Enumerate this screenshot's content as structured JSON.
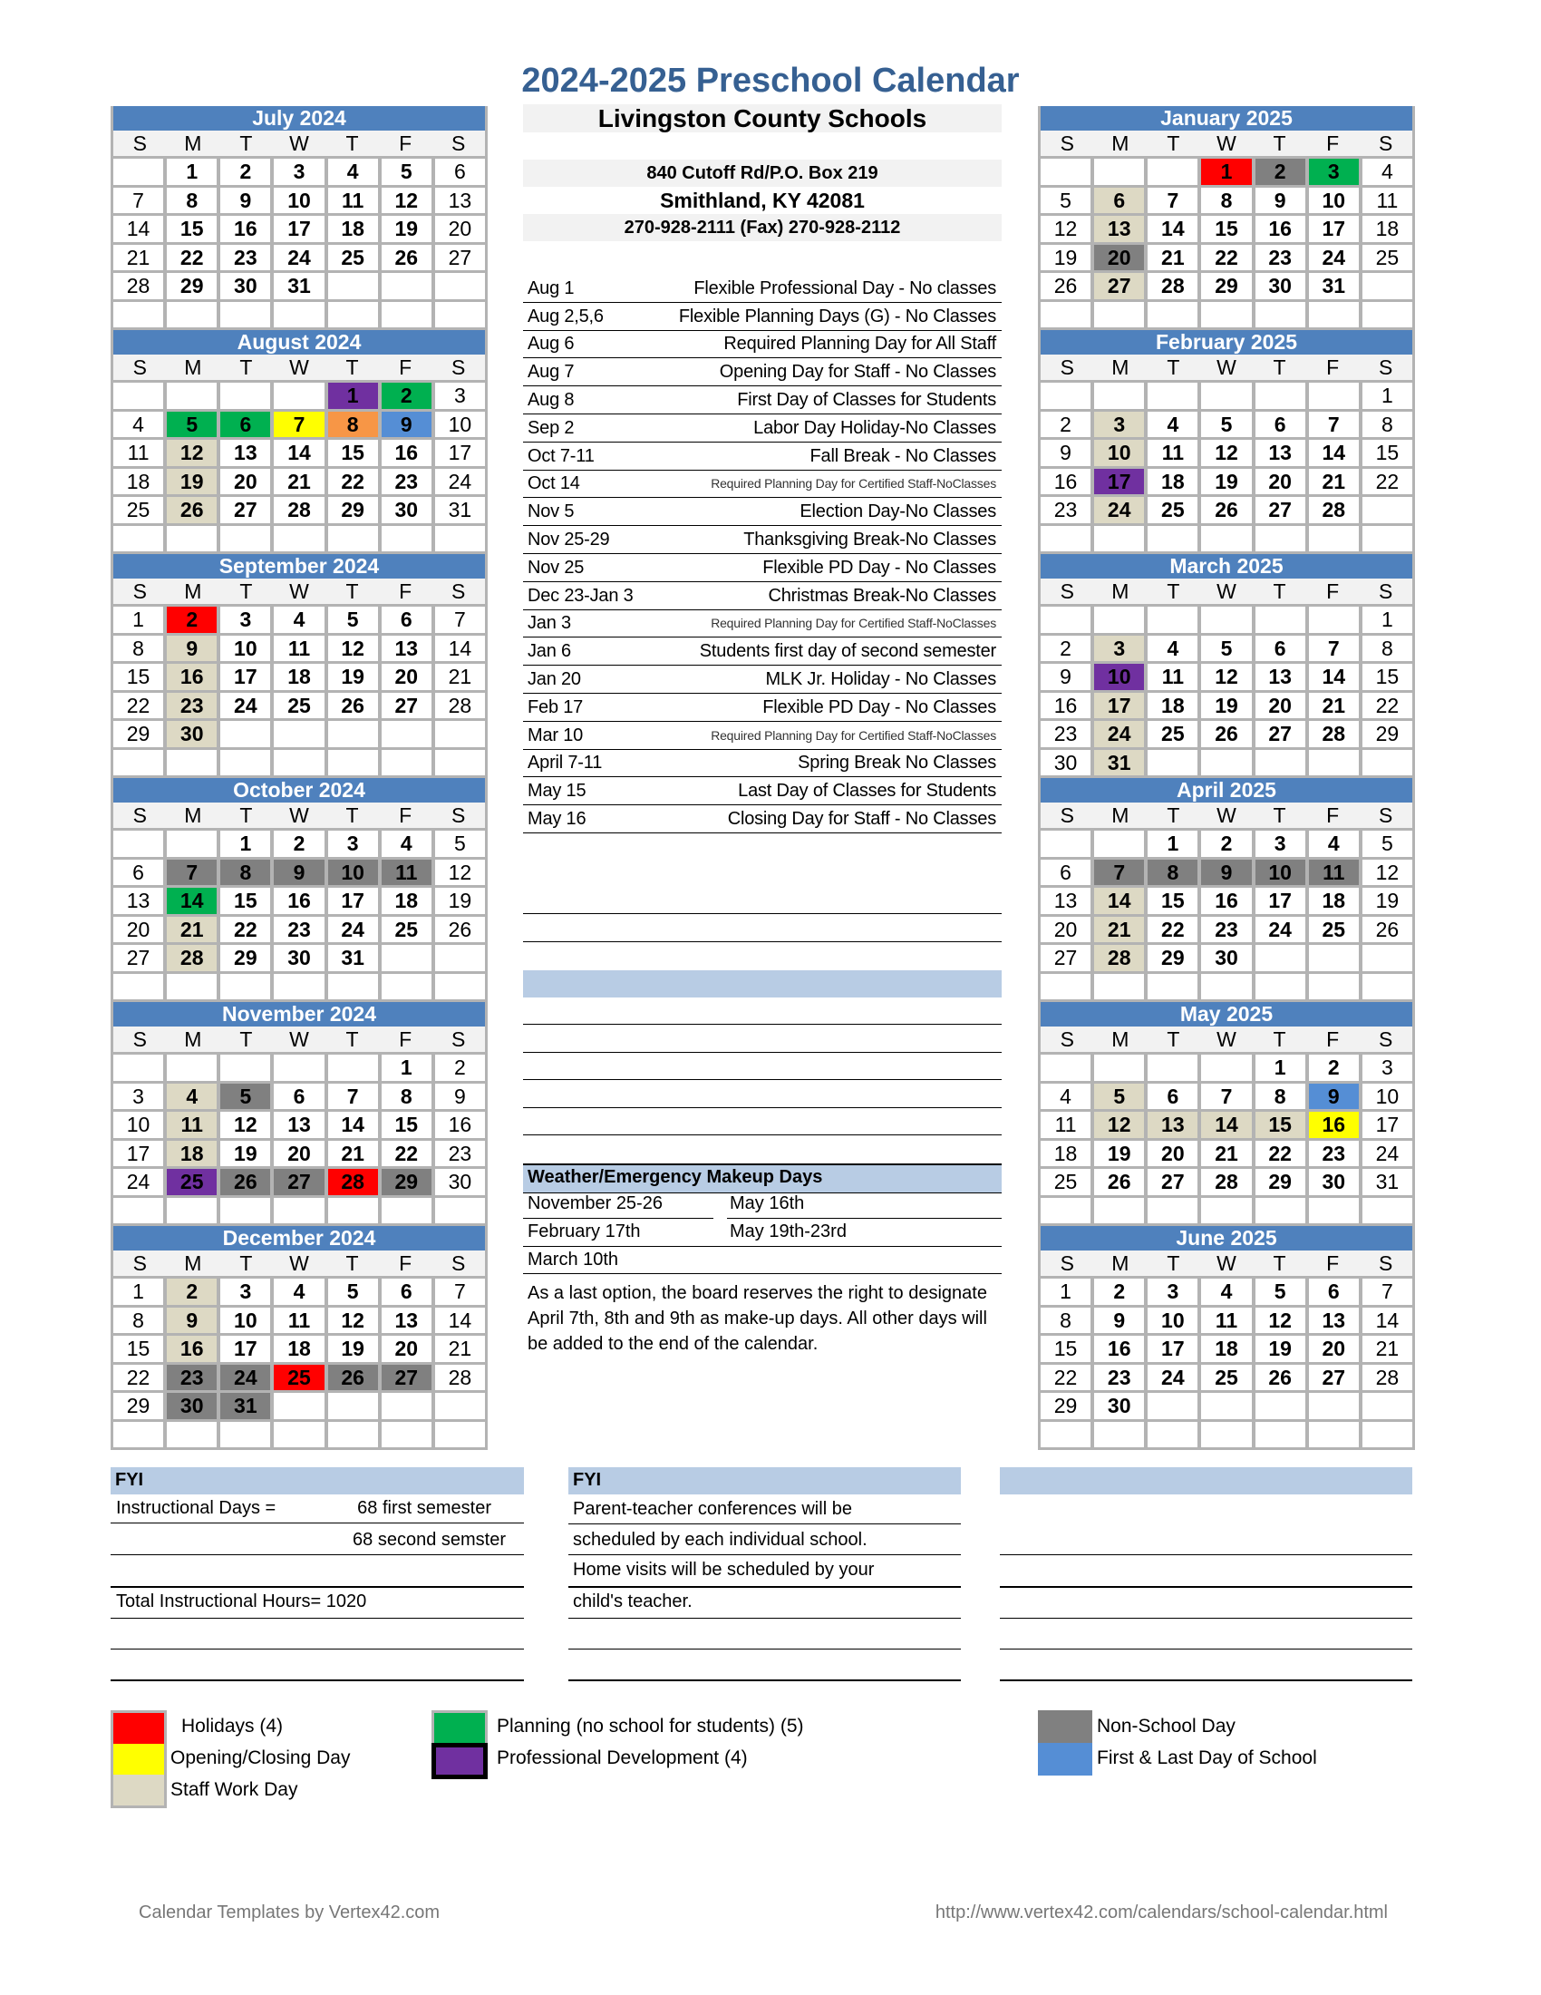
{
  "title": "2024-2025 Preschool Calendar",
  "school": {
    "name": "Livingston County Schools",
    "address": "840 Cutoff Rd/P.O. Box 219",
    "city": "Smithland, KY 42081",
    "phone": "270-928-2111  (Fax) 270-928-2112"
  },
  "weekday_headers": [
    "S",
    "M",
    "T",
    "W",
    "T",
    "F",
    "S"
  ],
  "colors": {
    "header": "#4f81bd",
    "tan": "#ddd9c4",
    "gray": "#808080",
    "red": "#ff0000",
    "green": "#00b050",
    "yellow": "#ffff00",
    "orange": "#f79646",
    "blue": "#558ed5",
    "purple": "#7030a0"
  },
  "months_left": [
    {
      "name": "July 2024",
      "start": 1,
      "days": 31,
      "marks": {}
    },
    {
      "name": "August 2024",
      "start": 4,
      "days": 31,
      "marks": {
        "1": "purple",
        "2": "green",
        "5": "green",
        "6": "green",
        "7": "yellow",
        "8": "orange",
        "9": "blue",
        "12": "tan",
        "19": "tan",
        "26": "tan"
      }
    },
    {
      "name": "September 2024",
      "start": 0,
      "days": 30,
      "marks": {
        "2": "red",
        "9": "tan",
        "16": "tan",
        "23": "tan",
        "30": "tan"
      }
    },
    {
      "name": "October 2024",
      "start": 2,
      "days": 31,
      "marks": {
        "7": "gray",
        "8": "gray",
        "9": "gray",
        "10": "gray",
        "11": "gray",
        "14": "green",
        "21": "tan",
        "28": "tan"
      }
    },
    {
      "name": "November 2024",
      "start": 5,
      "days": 30,
      "marks": {
        "4": "tan",
        "5": "gray",
        "11": "tan",
        "18": "tan",
        "25": "purple",
        "26": "gray",
        "27": "gray",
        "28": "red",
        "29": "gray"
      }
    },
    {
      "name": "December 2024",
      "start": 0,
      "days": 31,
      "marks": {
        "2": "tan",
        "9": "tan",
        "16": "tan",
        "23": "gray",
        "24": "gray",
        "25": "red",
        "26": "gray",
        "27": "gray",
        "30": "gray",
        "31": "gray"
      }
    }
  ],
  "months_right": [
    {
      "name": "January 2025",
      "start": 3,
      "days": 31,
      "marks": {
        "1": "red",
        "2": "gray",
        "3": "green",
        "6": "tan",
        "13": "tan",
        "20": "gray",
        "27": "tan"
      }
    },
    {
      "name": "February 2025",
      "start": 6,
      "days": 28,
      "marks": {
        "3": "tan",
        "10": "tan",
        "17": "purple",
        "24": "tan"
      }
    },
    {
      "name": "March 2025",
      "start": 6,
      "days": 31,
      "marks": {
        "3": "tan",
        "10": "purple",
        "17": "tan",
        "24": "tan",
        "31": "tan"
      }
    },
    {
      "name": "April 2025",
      "start": 2,
      "days": 30,
      "marks": {
        "7": "gray",
        "8": "gray",
        "9": "gray",
        "10": "gray",
        "11": "gray",
        "14": "tan",
        "21": "tan",
        "28": "tan"
      }
    },
    {
      "name": "May 2025",
      "start": 4,
      "days": 31,
      "marks": {
        "5": "tan",
        "9": "blue",
        "12": "tan",
        "13": "tan",
        "14": "tan",
        "15": "tan",
        "16": "yellow"
      }
    },
    {
      "name": "June 2025",
      "start": 0,
      "days": 30,
      "marks": {}
    }
  ],
  "events": [
    {
      "date": "Aug 1",
      "text": "Flexible Professional Day - No classes"
    },
    {
      "date": "Aug 2,5,6",
      "text": "Flexible Planning Days (G) - No Classes"
    },
    {
      "date": "Aug 6",
      "text": "Required Planning Day for All Staff"
    },
    {
      "date": "Aug 7",
      "text": "Opening Day for Staff - No Classes"
    },
    {
      "date": "Aug 8",
      "text": "First Day of Classes for Students"
    },
    {
      "date": "Sep 2",
      "text": "Labor Day Holiday-No Classes"
    },
    {
      "date": "Oct 7-11",
      "text": "Fall Break - No Classes"
    },
    {
      "date": "Oct 14",
      "text": "Required Planning Day for Certified Staff-NoClasses",
      "small": true
    },
    {
      "date": "Nov 5",
      "text": "Election Day-No Classes"
    },
    {
      "date": "Nov 25-29",
      "text": "Thanksgiving Break-No Classes"
    },
    {
      "date": "Nov 25",
      "text": "Flexible PD Day - No Classes"
    },
    {
      "date": "Dec 23-Jan 3",
      "text": "Christmas Break-No Classes"
    },
    {
      "date": "Jan 3",
      "text": "Required Planning Day for Certified Staff-NoClasses",
      "small": true
    },
    {
      "date": "Jan 6",
      "text": "Students first day of second semester"
    },
    {
      "date": "Jan 20",
      "text": "MLK Jr. Holiday - No Classes"
    },
    {
      "date": "Feb 17",
      "text": "Flexible PD Day - No Classes"
    },
    {
      "date": "Mar 10",
      "text": "Required Planning Day for Certified Staff-NoClasses",
      "small": true
    },
    {
      "date": "April 7-11",
      "text": "Spring Break No Classes"
    },
    {
      "date": "May 15",
      "text": "Last Day of Classes for Students"
    },
    {
      "date": "May 16",
      "text": "Closing Day for Staff - No Classes"
    }
  ],
  "makeup": {
    "title": "Weather/Emergency Makeup Days",
    "left": [
      "November 25-26",
      "February 17th",
      "March 10th"
    ],
    "right": [
      "May 16th",
      "May 19th-23rd"
    ],
    "note": "As a last option, the board reserves the right to designate April 7th, 8th and 9th as make-up days. All other days will be added to the end of the calendar."
  },
  "fyi_left": {
    "title": "FYI",
    "instructional_label": "Instructional Days =",
    "first_semester": "68 first semester",
    "second_semester": "68 second semster",
    "total_hours": "Total Instructional Hours= 1020"
  },
  "fyi_mid": {
    "title": "FYI",
    "lines": [
      "Parent-teacher conferences will be",
      "scheduled by each individual school.",
      "Home visits will be scheduled by your",
      "child's teacher."
    ]
  },
  "legend": [
    {
      "color": "red",
      "label": "Holidays (4)"
    },
    {
      "color": "yellow",
      "label": "Opening/Closing Day"
    },
    {
      "color": "tan",
      "label": "Staff Work Day"
    },
    {
      "color": "green",
      "label": "Planning (no school for students) (5)"
    },
    {
      "color": "purple",
      "label": "Professional Development (4)"
    },
    {
      "color": "gray",
      "label": "Non-School Day"
    },
    {
      "color": "blue",
      "label": "First & Last Day of School"
    }
  ],
  "footer": {
    "left": "Calendar Templates by Vertex42.com",
    "right": "http://www.vertex42.com/calendars/school-calendar.html"
  }
}
